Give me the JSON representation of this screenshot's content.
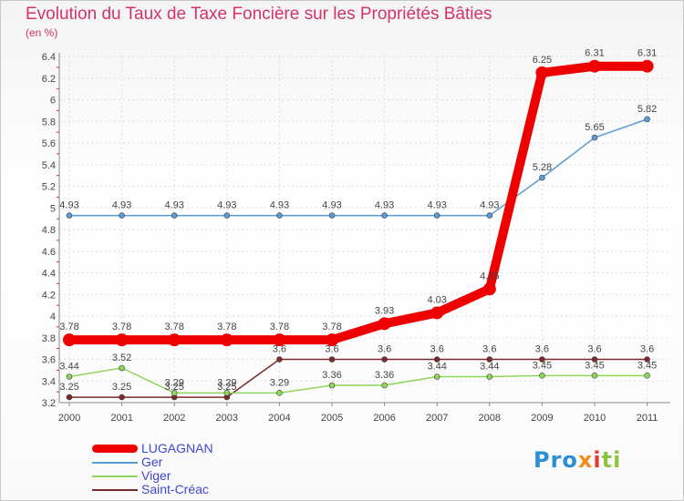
{
  "chart_data": {
    "type": "line",
    "title": "Evolution du Taux de Taxe Foncière sur les Propriétés Bâties",
    "ylabel": "(en %)",
    "xlabel": "",
    "x": [
      "2000",
      "2001",
      "2002",
      "2003",
      "2004",
      "2005",
      "2006",
      "2007",
      "2008",
      "2009",
      "2010",
      "2011"
    ],
    "ylim": [
      3.2,
      6.4
    ],
    "yticks": [
      "3.2",
      "3.4",
      "3.6",
      "3.8",
      "4",
      "4.2",
      "4.4",
      "4.6",
      "4.8",
      "5",
      "5.2",
      "5.4",
      "5.6",
      "5.8",
      "6",
      "6.2",
      "6.4"
    ],
    "grid": true,
    "legend_position": "bottom-left",
    "series": [
      {
        "name": "LUGAGNAN",
        "color": "#ee0000",
        "values": [
          3.78,
          3.78,
          3.78,
          3.78,
          3.78,
          3.78,
          3.93,
          4.03,
          4.25,
          6.25,
          6.31,
          6.31
        ],
        "labels": [
          "3.78",
          "3.78",
          "3.78",
          "3.78",
          "3.78",
          "3.78",
          "3.93",
          "4.03",
          "4.25",
          "6.25",
          "6.31",
          "6.31"
        ]
      },
      {
        "name": "Ger",
        "color": "#5b9bd5",
        "values": [
          4.93,
          4.93,
          4.93,
          4.93,
          4.93,
          4.93,
          4.93,
          4.93,
          4.93,
          5.28,
          5.65,
          5.82
        ],
        "labels": [
          "4.93",
          "4.93",
          "4.93",
          "4.93",
          "4.93",
          "4.93",
          "4.93",
          "4.93",
          "4.93",
          "5.28",
          "5.65",
          "5.82"
        ]
      },
      {
        "name": "Viger",
        "color": "#8ed65a",
        "values": [
          3.44,
          3.52,
          3.29,
          3.29,
          3.29,
          3.36,
          3.36,
          3.44,
          3.44,
          3.45,
          3.45,
          3.45
        ],
        "labels": [
          "3.44",
          "3.52",
          "3.29",
          "3.29",
          "3.29",
          "3.36",
          "3.36",
          "3.44",
          "3.44",
          "3.45",
          "3.45",
          "3.45"
        ]
      },
      {
        "name": "Saint-Créac",
        "color": "#7a2a2a",
        "values": [
          3.25,
          3.25,
          3.25,
          3.25,
          3.6,
          3.6,
          3.6,
          3.6,
          3.6,
          3.6,
          3.6,
          3.6
        ],
        "labels": [
          "3.25",
          "3.25",
          "3.25",
          "3.25",
          "3.6",
          "3.6",
          "3.6",
          "3.6",
          "3.6",
          "3.6",
          "3.6",
          "3.6"
        ]
      }
    ]
  },
  "branding": {
    "logo_text": "Proxiti"
  }
}
